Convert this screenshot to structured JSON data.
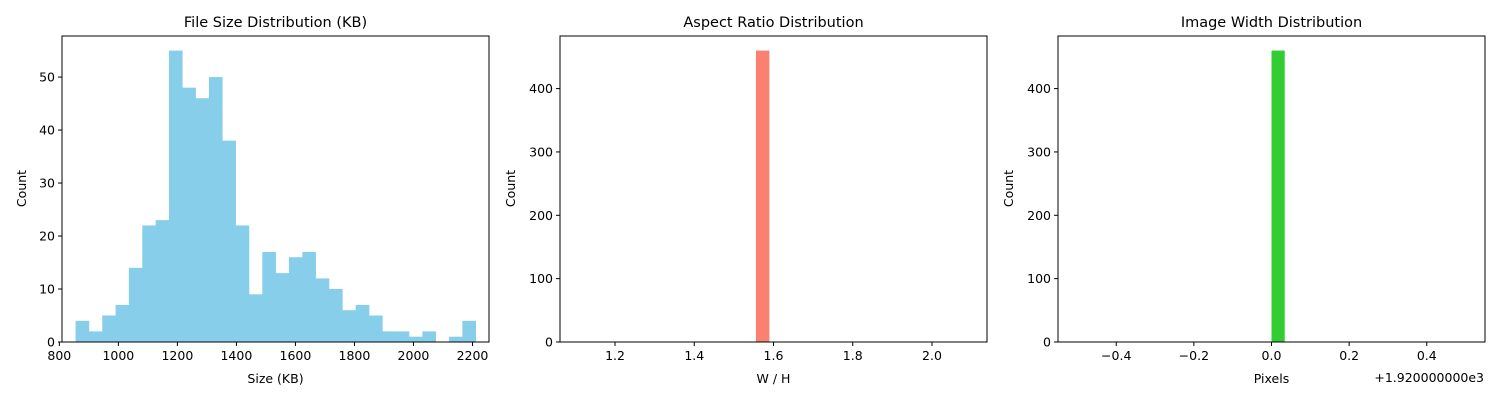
{
  "chart_data": [
    {
      "type": "bar",
      "title": "File Size Distribution (KB)",
      "xlabel": "Size (KB)",
      "ylabel": "Count",
      "color": "#87ceeb",
      "xlim": [
        809,
        2256
      ],
      "ylim": [
        0,
        57.75
      ],
      "xticks": [
        800,
        1000,
        1200,
        1400,
        1600,
        1800,
        2000,
        2200
      ],
      "yticks": [
        0,
        10,
        20,
        30,
        40,
        50
      ],
      "bin_start": 855,
      "bin_width": 45.2,
      "values": [
        4,
        2,
        5,
        7,
        14,
        22,
        23,
        55,
        48,
        46,
        50,
        38,
        22,
        9,
        17,
        13,
        16,
        17,
        12,
        10,
        6,
        7,
        5,
        2,
        2,
        1,
        2,
        0,
        1,
        4
      ],
      "offset_text": ""
    },
    {
      "type": "bar",
      "title": "Aspect Ratio Distribution",
      "xlabel": "W / H",
      "ylabel": "Count",
      "color": "#fa8072",
      "xlim": [
        1.0611,
        2.1389
      ],
      "ylim": [
        0,
        483
      ],
      "xticks": [
        1.2,
        1.4,
        1.6,
        1.8,
        2.0
      ],
      "yticks": [
        0,
        100,
        200,
        300,
        400
      ],
      "bin_start": 1.5556,
      "bin_width": 0.0333,
      "values": [
        460
      ],
      "offset_text": ""
    },
    {
      "type": "bar",
      "title": "Image Width Distribution",
      "xlabel": "Pixels",
      "ylabel": "Count",
      "color": "#32cd32",
      "xlim": [
        -0.55,
        0.55
      ],
      "ylim": [
        0,
        483
      ],
      "xticks": [
        -0.4,
        -0.2,
        0.0,
        0.2,
        0.4
      ],
      "yticks": [
        0,
        100,
        200,
        300,
        400
      ],
      "bin_start": 0.0,
      "bin_width": 0.0333,
      "values": [
        460
      ],
      "offset_text": "+1.920000000e3"
    }
  ]
}
